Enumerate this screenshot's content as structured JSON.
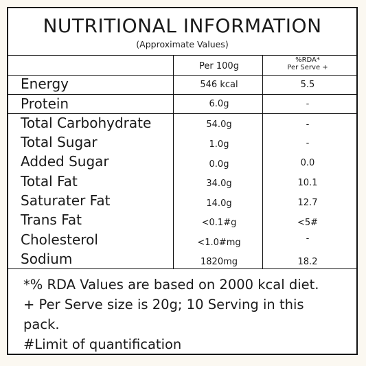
{
  "title": "NUTRITIONAL INFORMATION",
  "subtitle": "(Approximate Values)",
  "columns": {
    "per100g": "Per 100g",
    "rda_line1": "%RDA*",
    "rda_line2": "Per Serve +"
  },
  "rows": [
    {
      "label": "Energy",
      "per100g": "546 kcal",
      "rda": "5.5"
    },
    {
      "label": "Protein",
      "per100g": "6.0g",
      "rda": "-"
    },
    {
      "label": "Total Carbohydrate",
      "per100g": "54.0g",
      "rda": "-"
    },
    {
      "label": "Total Sugar",
      "per100g": "1.0g",
      "rda": "-"
    },
    {
      "label": "Added Sugar",
      "per100g": "0.0g",
      "rda": "0.0"
    },
    {
      "label": "Total Fat",
      "per100g": "34.0g",
      "rda": "10.1"
    },
    {
      "label": "Saturater Fat",
      "per100g": "14.0g",
      "rda": "12.7"
    },
    {
      "label": "Trans Fat",
      "per100g": "<0.1#g",
      "rda": "<5#"
    },
    {
      "label": "Cholesterol",
      "per100g": "<1.0#mg",
      "rda": "-"
    },
    {
      "label": "Sodium",
      "per100g": "1820mg",
      "rda": "18.2"
    }
  ],
  "footnotes": [
    "*% RDA Values are based on 2000 kcal diet.",
    "+ Per Serve size is 20g; 10 Serving in this",
    "pack.",
    "#Limit of quantification"
  ]
}
